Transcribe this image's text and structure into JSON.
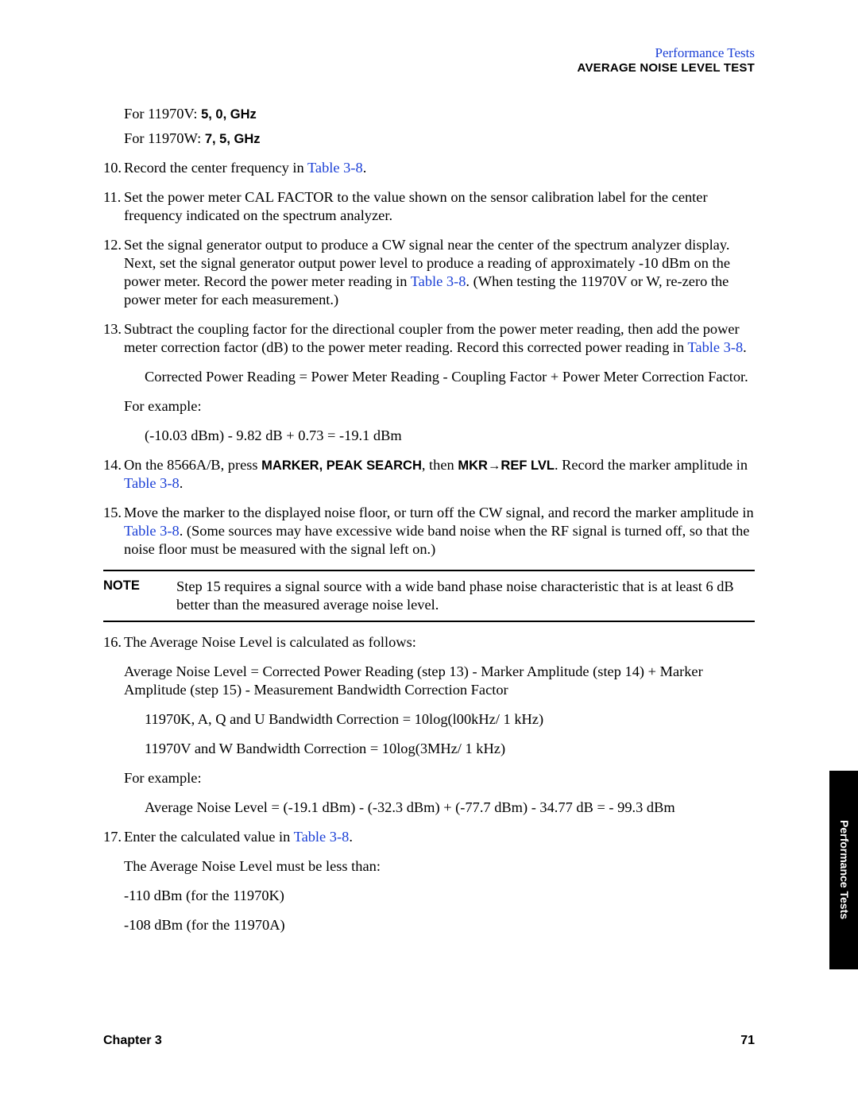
{
  "header": {
    "category": "Performance Tests",
    "section": "AVERAGE NOISE LEVEL TEST"
  },
  "intro_lines": {
    "v_prefix": "For 11970V: ",
    "v_value": "5, 0, GHz",
    "w_prefix": "For 11970W: ",
    "w_value": "7, 5, GHz"
  },
  "links": {
    "table38": "Table 3-8"
  },
  "steps": {
    "s10": {
      "num": "10.",
      "a": "Record the center frequency in ",
      "b": "."
    },
    "s11": {
      "num": "11.",
      "text": "Set the power meter CAL FACTOR to the value shown on the sensor calibration label for the center frequency indicated on the spectrum analyzer."
    },
    "s12": {
      "num": "12.",
      "a": "Set the signal generator output to produce a CW signal near the center of the spectrum analyzer display. Next, set the signal generator output power level to produce a reading of approximately -10 dBm on the power meter. Record the power meter reading in ",
      "b": ". (When testing the 11970V or W, re-zero the power meter for each measurement.)"
    },
    "s13": {
      "num": "13.",
      "a": "Subtract the coupling factor for the directional coupler from the power meter reading, then add the power meter correction factor (dB) to the power meter reading. Record this corrected power reading in ",
      "b": ".",
      "formula": "Corrected Power Reading = Power Meter Reading - Coupling Factor + Power Meter Correction Factor.",
      "forex": "For example:",
      "example": "(-10.03 dBm) - 9.82 dB + 0.73 = -19.1 dBm"
    },
    "s14": {
      "num": "14.",
      "a": "On the 8566A/B, press ",
      "b1": "MARKER, PEAK SEARCH",
      "c": ", then ",
      "b2": "MKR→REF LVL",
      "d": ". Record the marker amplitude in ",
      "e": "."
    },
    "s15": {
      "num": "15.",
      "a": "Move the marker to the displayed noise floor, or turn off the CW signal, and record the marker amplitude in ",
      "b": ". (Some sources may have excessive wide band noise when the RF signal is turned off, so that the noise floor must be measured with the signal left on.)"
    },
    "note": {
      "label": "NOTE",
      "text": "Step 15 requires a signal source with a wide band phase noise characteristic that is at least 6 dB better than the measured average noise level."
    },
    "s16": {
      "num": "16.",
      "intro": "The Average Noise Level is calculated as follows:",
      "eq": "Average Noise Level = Corrected Power Reading (step 13) - Marker Amplitude (step 14) + Marker Amplitude (step 15) - Measurement Bandwidth Correction Factor",
      "bw1": "11970K, A, Q and U Bandwidth Correction = 10log(l00kHz/ 1 kHz)",
      "bw2": "11970V and W Bandwidth Correction = 10log(3MHz/ 1 kHz)",
      "forex": "For example:",
      "example": "Average Noise Level = (-19.1 dBm) - (-32.3 dBm) + (-77.7 dBm) - 34.77 dB = - 99.3 dBm"
    },
    "s17": {
      "num": "17.",
      "a": "Enter the calculated value in ",
      "b": ".",
      "must": "The Average Noise Level must be less than:",
      "spec1": "-110 dBm (for the 11970K)",
      "spec2": "-108 dBm (for the 11970A)"
    }
  },
  "footer": {
    "chapter": "Chapter 3",
    "page": "71"
  },
  "sidetab": "Performance Tests"
}
